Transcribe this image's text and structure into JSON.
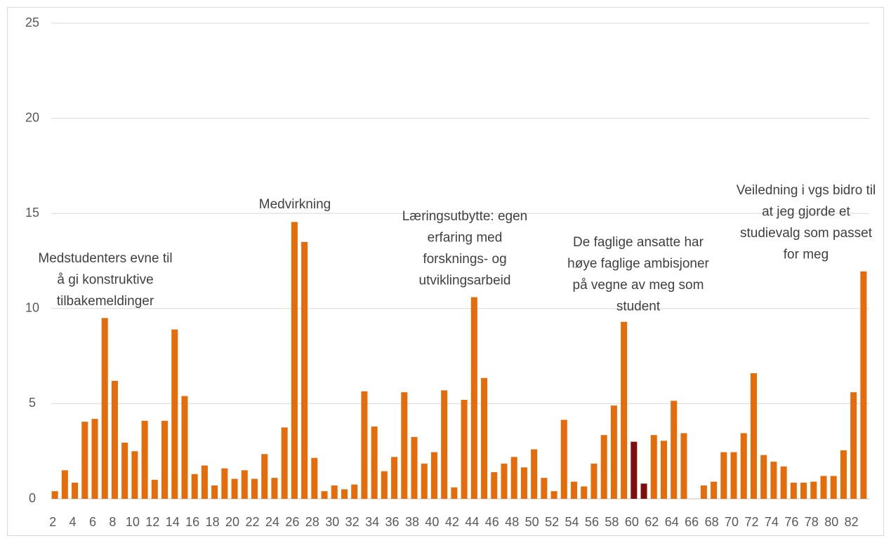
{
  "chart_data": {
    "type": "bar",
    "categories": [
      "2",
      null,
      "4",
      null,
      "6",
      null,
      "8",
      null,
      "10",
      null,
      "12",
      null,
      "14",
      null,
      "16",
      null,
      "18",
      null,
      "20",
      null,
      "22",
      null,
      "24",
      null,
      "26",
      null,
      "28",
      null,
      "30",
      null,
      "32",
      null,
      "34",
      null,
      "36",
      null,
      "38",
      null,
      "40",
      null,
      "42",
      null,
      "44",
      null,
      "46",
      null,
      "48",
      null,
      "50",
      null,
      "52",
      null,
      "54",
      null,
      "56",
      null,
      "58",
      null,
      "60",
      null,
      "62",
      null,
      "64",
      null,
      "66",
      null,
      "68",
      null,
      "70",
      null,
      "72",
      null,
      "74",
      null,
      "76",
      null,
      "78",
      null,
      "80",
      null,
      "82",
      null
    ],
    "values": [
      0.4,
      1.5,
      0.85,
      4.05,
      4.2,
      9.5,
      6.2,
      2.95,
      2.5,
      4.1,
      1.0,
      4.1,
      8.9,
      5.4,
      1.3,
      1.75,
      0.7,
      1.6,
      1.05,
      1.5,
      1.05,
      2.35,
      1.1,
      3.75,
      14.55,
      13.5,
      2.15,
      0.4,
      0.7,
      0.5,
      0.75,
      5.65,
      3.8,
      1.45,
      2.2,
      5.6,
      3.25,
      1.85,
      2.45,
      5.7,
      0.6,
      5.2,
      10.6,
      6.35,
      1.4,
      1.85,
      2.2,
      1.65,
      2.6,
      1.1,
      0.4,
      4.15,
      0.9,
      0.65,
      1.85,
      3.35,
      4.9,
      9.3,
      3.0,
      0.8,
      3.35,
      3.05,
      5.15,
      3.45,
      null,
      0.7,
      0.9,
      2.45,
      2.45,
      3.45,
      6.6,
      2.3,
      1.95,
      1.7,
      0.85,
      0.85,
      0.9,
      1.2,
      1.2,
      2.55,
      5.6,
      11.95
    ],
    "color": "#e46c0a",
    "highlight_color": "#7f0f0f",
    "highlighted_categories": [
      58,
      59
    ],
    "ylim": [
      0,
      25
    ],
    "yticks": [
      0,
      5,
      10,
      15,
      20,
      25
    ],
    "grid": true,
    "annotations": [
      [
        "Medstudenters evne til",
        "å gi konstruktive",
        "tilbakemeldinger"
      ],
      [
        "Medvirkning"
      ],
      [
        "Læringsutbytte: egen",
        "erfaring med",
        "forsknings- og",
        "utviklingsarbeid"
      ],
      [
        "De faglige ansatte har",
        "høye faglige ambisjoner",
        "på vegne av meg som",
        "student"
      ],
      [
        "Veiledning i vgs bidro til",
        "at jeg gjorde et",
        "studievalg som passet",
        "for meg"
      ]
    ]
  }
}
